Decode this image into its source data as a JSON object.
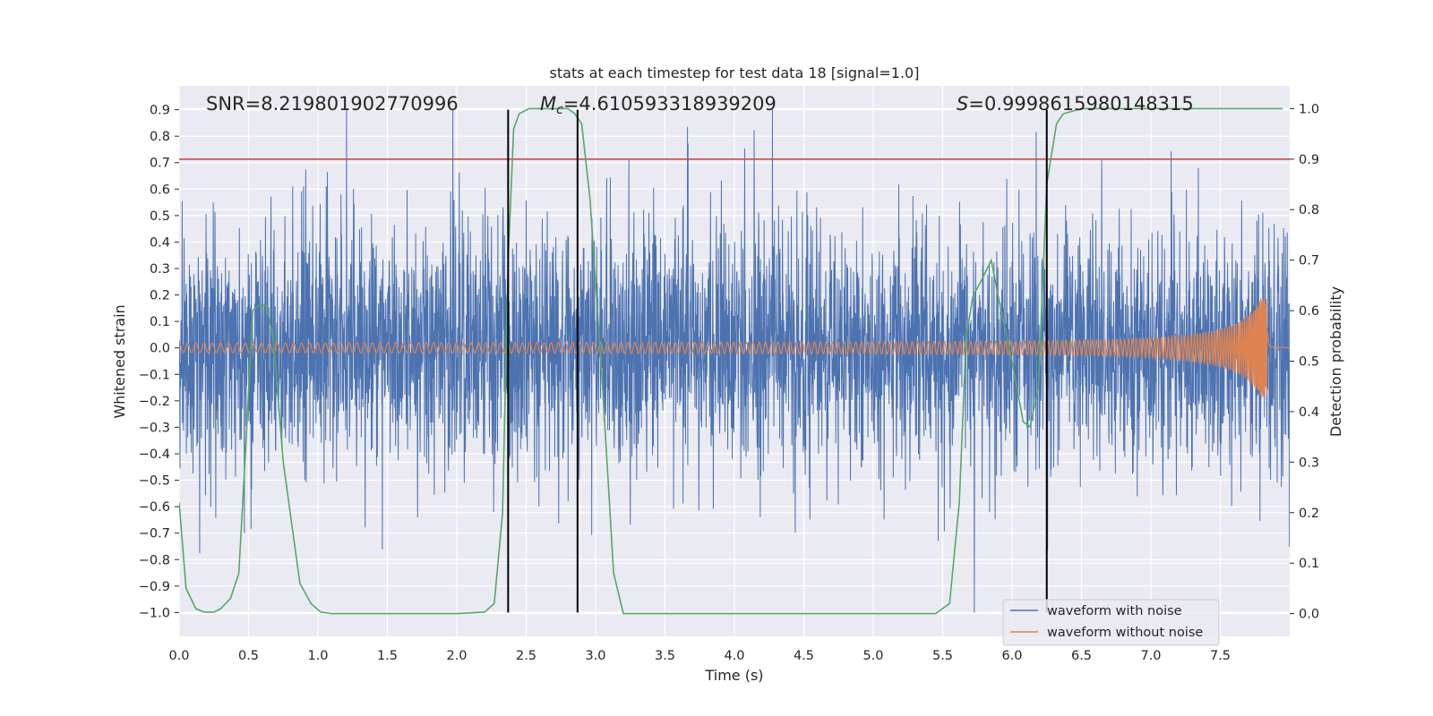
{
  "chart_data": {
    "type": "line",
    "title": "stats at each timestep for test data 18 [signal=1.0]",
    "xlabel": "Time (s)",
    "ylabel": "Whitened strain",
    "y2label": "Detection probability",
    "xlim": [
      0.0,
      8.0
    ],
    "ylim": [
      -1.09,
      0.99
    ],
    "y2lim": [
      -0.045,
      1.045
    ],
    "xticks": [
      0.0,
      0.5,
      1.0,
      1.5,
      2.0,
      2.5,
      3.0,
      3.5,
      4.0,
      4.5,
      5.0,
      5.5,
      6.0,
      6.5,
      7.0,
      7.5
    ],
    "xtick_labels": [
      "0.0",
      "0.5",
      "1.0",
      "1.5",
      "2.0",
      "2.5",
      "3.0",
      "3.5",
      "4.0",
      "4.5",
      "5.0",
      "5.5",
      "6.0",
      "6.5",
      "7.0",
      "7.5"
    ],
    "yticks": [
      0.9,
      0.8,
      0.7,
      0.6,
      0.5,
      0.4,
      0.3,
      0.2,
      0.1,
      0.0,
      -0.1,
      -0.2,
      -0.3,
      -0.4,
      -0.5,
      -0.6,
      -0.7,
      -0.8,
      -0.9,
      -1.0
    ],
    "ytick_labels": [
      "0.9",
      "0.8",
      "0.7",
      "0.6",
      "0.5",
      "0.4",
      "0.3",
      "0.2",
      "0.1",
      "0.0",
      "−0.1",
      "−0.2",
      "−0.3",
      "−0.4",
      "−0.5",
      "−0.6",
      "−0.7",
      "−0.8",
      "−0.9",
      "−1.0"
    ],
    "y2ticks": [
      1.0,
      0.9,
      0.8,
      0.7,
      0.6,
      0.5,
      0.4,
      0.3,
      0.2,
      0.1,
      0.0
    ],
    "y2tick_labels": [
      "1.0",
      "0.9",
      "0.8",
      "0.7",
      "0.6",
      "0.5",
      "0.4",
      "0.3",
      "0.2",
      "0.1",
      "0.0"
    ],
    "annotations": {
      "snr": "SNR=8.219801902770996",
      "mc_sym": "M",
      "mc_sub": "c",
      "mc_value": "=4.610593318939209",
      "s_sym": "S",
      "s_value": "=0.9998615980148315"
    },
    "vertical_markers_s": [
      2.37,
      2.87,
      6.25
    ],
    "marker_ymin": -1.0,
    "marker_ymax": 0.9,
    "threshold_probability": 0.9,
    "series": [
      {
        "name": "waveform with noise",
        "color": "#4c72b0",
        "axis": "left",
        "style": "dense-noise",
        "t_range": [
          0.0,
          8.0
        ],
        "typical_amplitude": 0.3,
        "peak_max": 0.9,
        "peak_min": -1.0
      },
      {
        "name": "waveform without noise",
        "color": "#dd8452",
        "axis": "left",
        "style": "chirp",
        "t_range": [
          0.0,
          7.86
        ],
        "amplitude_start": 0.018,
        "amplitude_at_7_5": 0.07,
        "amplitude_peak": 0.19,
        "merger_time_s": 7.84
      },
      {
        "name": "detection probability",
        "color": "#55a868",
        "axis": "right",
        "style": "line",
        "t": [
          0.0,
          0.05,
          0.12,
          0.18,
          0.25,
          0.3,
          0.37,
          0.43,
          0.48,
          0.53,
          0.57,
          0.63,
          0.68,
          0.75,
          0.87,
          0.95,
          1.02,
          1.1,
          1.5,
          2.0,
          2.2,
          2.27,
          2.33,
          2.37,
          2.41,
          2.45,
          2.52,
          2.6,
          2.7,
          2.8,
          2.85,
          2.9,
          2.96,
          3.05,
          3.13,
          3.2,
          3.5,
          4.0,
          4.5,
          5.0,
          5.45,
          5.55,
          5.62,
          5.67,
          5.72,
          5.78,
          5.85,
          5.92,
          6.0,
          6.08,
          6.13,
          6.19,
          6.25,
          6.32,
          6.37,
          6.5,
          7.0,
          7.5,
          7.95
        ],
        "values": [
          0.22,
          0.05,
          0.01,
          0.003,
          0.003,
          0.01,
          0.03,
          0.08,
          0.33,
          0.6,
          0.61,
          0.61,
          0.54,
          0.3,
          0.06,
          0.02,
          0.003,
          0.0,
          0.0,
          0.0,
          0.003,
          0.02,
          0.2,
          0.7,
          0.96,
          0.99,
          1.0,
          1.0,
          1.0,
          1.0,
          0.99,
          0.97,
          0.82,
          0.45,
          0.08,
          0.0,
          0.0,
          0.0,
          0.0,
          0.0,
          0.0,
          0.02,
          0.22,
          0.55,
          0.63,
          0.66,
          0.7,
          0.6,
          0.5,
          0.38,
          0.37,
          0.45,
          0.85,
          0.97,
          0.99,
          1.0,
          1.0,
          1.0,
          1.0
        ]
      },
      {
        "name": "threshold",
        "color": "#c44e52",
        "axis": "right",
        "style": "hline",
        "value": 0.9
      }
    ],
    "legend_position": "lower-right"
  }
}
